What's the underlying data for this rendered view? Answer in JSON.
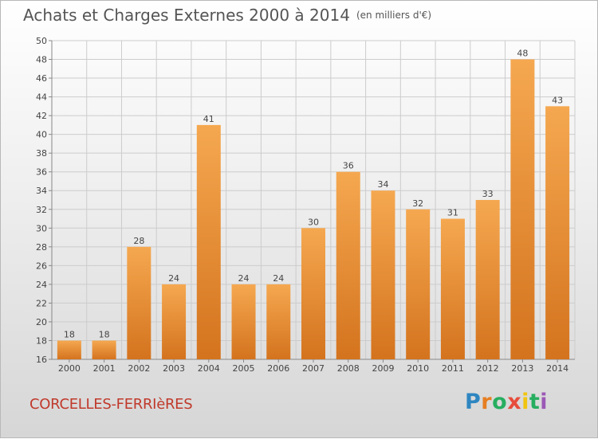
{
  "header": {
    "title": "Achats et Charges Externes 2000 à 2014",
    "unit": "(en milliers d'€)"
  },
  "footer": {
    "commune": "CORCELLES-FERRIèRES",
    "logo": [
      "P",
      "r",
      "o",
      "x",
      "i",
      "t",
      "i"
    ],
    "logo_colors": [
      "#2e86c1",
      "#e67e22",
      "#27ae60",
      "#e74c3c",
      "#f1c40f",
      "#27ae60",
      "#9b59b6"
    ]
  },
  "colors": {
    "bar_light": "#f5a850",
    "bar_dark": "#d4731e",
    "grid": "#cccccc"
  },
  "chart_data": {
    "type": "bar",
    "title": "Achats et Charges Externes 2000 à 2014",
    "subtitle": "(en milliers d'€)",
    "categories": [
      "2000",
      "2001",
      "2002",
      "2003",
      "2004",
      "2005",
      "2006",
      "2007",
      "2008",
      "2009",
      "2010",
      "2011",
      "2012",
      "2013",
      "2014"
    ],
    "values": [
      18,
      18,
      28,
      24,
      41,
      24,
      24,
      30,
      36,
      34,
      32,
      31,
      33,
      48,
      43
    ],
    "ylim": [
      16,
      50
    ],
    "yticks": [
      16,
      18,
      20,
      22,
      24,
      26,
      28,
      30,
      32,
      34,
      36,
      38,
      40,
      42,
      44,
      46,
      48,
      50
    ],
    "grid": true,
    "xlabel": "",
    "ylabel": ""
  }
}
